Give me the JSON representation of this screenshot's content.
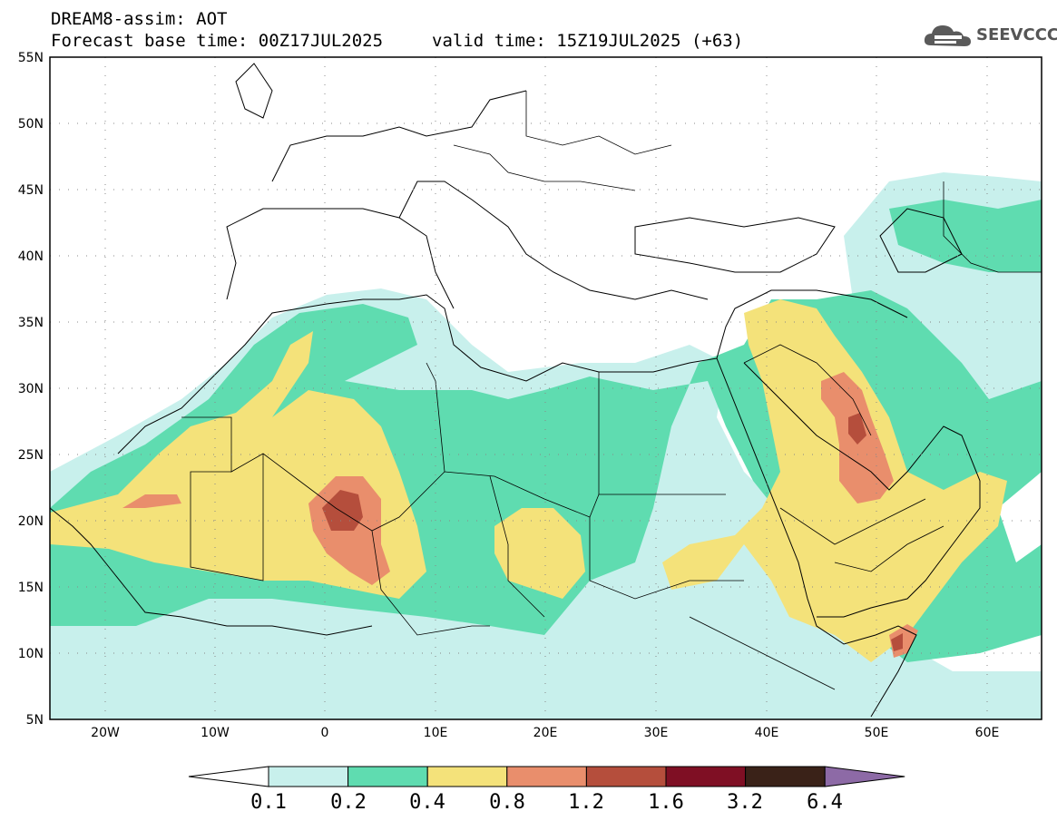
{
  "title": {
    "line1": "DREAM8-assim: AOT",
    "line2": "Forecast base time: 00Z17JUL2025",
    "valid": "valid time: 15Z19JUL2025 (+63)"
  },
  "logo": {
    "text": "SEEVCCC",
    "icon": "cloud-icon"
  },
  "axes": {
    "lat_labels": [
      "55N",
      "50N",
      "45N",
      "40N",
      "35N",
      "30N",
      "25N",
      "20N",
      "15N",
      "10N",
      "5N"
    ],
    "lon_labels": [
      "20W",
      "10W",
      "0",
      "10E",
      "20E",
      "30E",
      "40E",
      "50E",
      "60E"
    ]
  },
  "colorbar": {
    "levels": [
      "0.1",
      "0.2",
      "0.4",
      "0.8",
      "1.2",
      "1.6",
      "3.2",
      "6.4"
    ],
    "colors": [
      "#ffffff",
      "#c8f0ec",
      "#5fdcb0",
      "#f4e27a",
      "#e98e6c",
      "#b54e3c",
      "#7f0f24",
      "#3a2218",
      "#8d6aa6"
    ]
  },
  "chart_data": {
    "type": "heatmap",
    "variable": "AOT",
    "lon_range": [
      -25,
      65
    ],
    "lat_range": [
      5,
      55
    ]
  }
}
